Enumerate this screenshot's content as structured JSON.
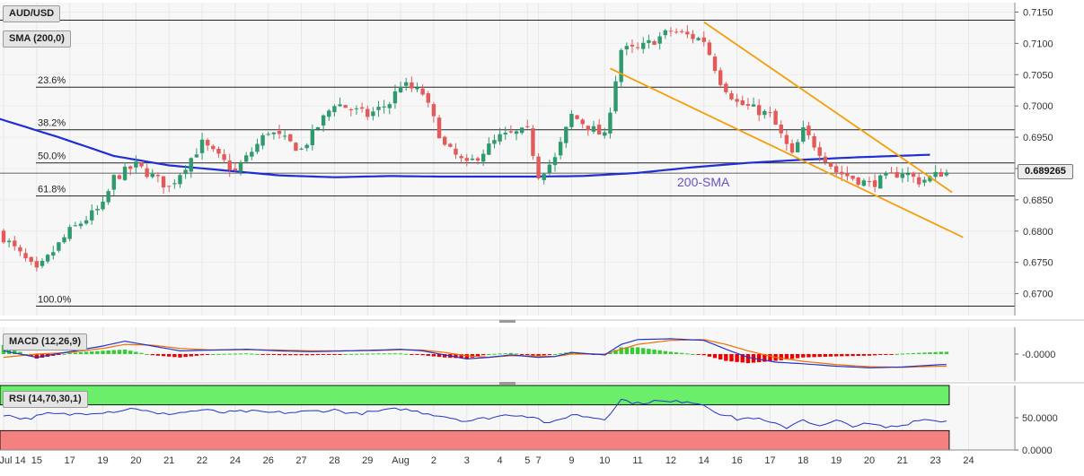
{
  "symbol": "AUD/USD",
  "indicators": {
    "sma_label": "SMA (200,0)",
    "macd_label": "MACD (12,26,9)",
    "rsi_label": "RSI (14,70,30,1)",
    "sma_annotation": "200-SMA"
  },
  "last_price_label": "0.689265",
  "colors": {
    "bull": "#2e9a6e",
    "bear": "#e25a5a",
    "sma": "#1f2fd1",
    "channel": "#f59e0b",
    "macd_line": "#2233cc",
    "signal_line": "#f07000",
    "hist_pos": "#33cc33",
    "hist_neg": "#ee0000",
    "rsi_line": "#2233cc",
    "rsi_overbought_zone": "#6bef6b",
    "rsi_oversold_zone": "#f48080",
    "label_box": "#e4e4e4",
    "price_tag": "#ececec"
  },
  "chart_data": [
    {
      "type": "candlestick",
      "panel": "price",
      "title": "AUD/USD",
      "ylim": [
        0.6665,
        0.7165
      ],
      "y_ticks": [
        0.715,
        0.71,
        0.705,
        0.7,
        0.695,
        0.69,
        0.685,
        0.68,
        0.675,
        0.67
      ],
      "y_tick_labels": [
        "0.7150",
        "0.7100",
        "0.7050",
        "0.7000",
        "0.6950",
        "0.6900",
        "0.6850",
        "0.6800",
        "0.6750",
        "0.6700"
      ],
      "x_ticks": [
        {
          "label": "Jul 14",
          "i": 0
        },
        {
          "label": "15",
          "i": 6
        },
        {
          "label": "17",
          "i": 12
        },
        {
          "label": "19",
          "i": 18
        },
        {
          "label": "20",
          "i": 24
        },
        {
          "label": "21",
          "i": 30
        },
        {
          "label": "22",
          "i": 36
        },
        {
          "label": "24",
          "i": 42
        },
        {
          "label": "26",
          "i": 48
        },
        {
          "label": "27",
          "i": 54
        },
        {
          "label": "28",
          "i": 60
        },
        {
          "label": "29",
          "i": 66
        },
        {
          "label": "Aug",
          "i": 72
        },
        {
          "label": "2",
          "i": 78
        },
        {
          "label": "3",
          "i": 84
        },
        {
          "label": "4",
          "i": 90
        },
        {
          "label": "5",
          "i": 95
        },
        {
          "label": "7",
          "i": 97
        },
        {
          "label": "9",
          "i": 103
        },
        {
          "label": "10",
          "i": 109
        },
        {
          "label": "11",
          "i": 115
        },
        {
          "label": "12",
          "i": 121
        },
        {
          "label": "14",
          "i": 127
        },
        {
          "label": "16",
          "i": 133
        },
        {
          "label": "17",
          "i": 139
        },
        {
          "label": "18",
          "i": 145
        },
        {
          "label": "19",
          "i": 151
        },
        {
          "label": "20",
          "i": 157
        },
        {
          "label": "21",
          "i": 163
        },
        {
          "label": "23",
          "i": 169
        },
        {
          "label": "24",
          "i": 175
        }
      ],
      "candle_count": 172,
      "close_anchors": [
        [
          0,
          0.679
        ],
        [
          6,
          0.6735
        ],
        [
          12,
          0.68
        ],
        [
          18,
          0.684
        ],
        [
          20,
          0.6885
        ],
        [
          24,
          0.6905
        ],
        [
          30,
          0.687
        ],
        [
          36,
          0.694
        ],
        [
          42,
          0.6895
        ],
        [
          48,
          0.696
        ],
        [
          54,
          0.693
        ],
        [
          60,
          0.7005
        ],
        [
          66,
          0.6985
        ],
        [
          70,
          0.7005
        ],
        [
          72,
          0.7035
        ],
        [
          76,
          0.702
        ],
        [
          80,
          0.6935
        ],
        [
          84,
          0.6905
        ],
        [
          90,
          0.695
        ],
        [
          95,
          0.696
        ],
        [
          97,
          0.689
        ],
        [
          100,
          0.6915
        ],
        [
          103,
          0.6985
        ],
        [
          109,
          0.695
        ],
        [
          112,
          0.709
        ],
        [
          115,
          0.709
        ],
        [
          121,
          0.712
        ],
        [
          127,
          0.7105
        ],
        [
          130,
          0.704
        ],
        [
          133,
          0.7005
        ],
        [
          139,
          0.6985
        ],
        [
          143,
          0.692
        ],
        [
          145,
          0.696
        ],
        [
          151,
          0.6895
        ],
        [
          157,
          0.6875
        ],
        [
          163,
          0.6895
        ],
        [
          166,
          0.688
        ],
        [
          168,
          0.6885
        ],
        [
          170,
          0.6893
        ]
      ],
      "sma_200": [
        [
          -1,
          0.698
        ],
        [
          10,
          0.695
        ],
        [
          20,
          0.692
        ],
        [
          30,
          0.6905
        ],
        [
          40,
          0.6897
        ],
        [
          50,
          0.6889
        ],
        [
          60,
          0.6886
        ],
        [
          70,
          0.6888
        ],
        [
          80,
          0.6887
        ],
        [
          95,
          0.6887
        ],
        [
          105,
          0.6888
        ],
        [
          115,
          0.6893
        ],
        [
          125,
          0.6902
        ],
        [
          135,
          0.6909
        ],
        [
          145,
          0.6914
        ],
        [
          155,
          0.6918
        ],
        [
          168,
          0.6922
        ]
      ],
      "fibonacci": [
        {
          "label": "23.6%",
          "price": 0.703
        },
        {
          "label": "38.2%",
          "price": 0.6962
        },
        {
          "label": "50.0%",
          "price": 0.6909
        },
        {
          "label": "61.8%",
          "price": 0.6856
        },
        {
          "label": "100.0%",
          "price": 0.668
        }
      ],
      "horizontal_lines": [
        0.7137
      ],
      "falling_channel": {
        "upper": [
          [
            127,
            0.7134
          ],
          [
            172,
            0.6862
          ]
        ],
        "lower": [
          [
            110,
            0.706
          ],
          [
            174,
            0.679
          ]
        ]
      },
      "last_price": 0.689265
    },
    {
      "type": "macd",
      "panel": "macd",
      "title": "MACD (12,26,9)",
      "y_ticks": [
        0
      ],
      "y_tick_labels": [
        "-0.0000"
      ],
      "macd_anchors": [
        [
          0,
          0.2
        ],
        [
          6,
          -0.2
        ],
        [
          12,
          0.15
        ],
        [
          18,
          0.5
        ],
        [
          22,
          0.8
        ],
        [
          27,
          0.5
        ],
        [
          32,
          0.2
        ],
        [
          38,
          0.25
        ],
        [
          44,
          0.3
        ],
        [
          50,
          0.2
        ],
        [
          56,
          0.15
        ],
        [
          62,
          0.2
        ],
        [
          68,
          0.25
        ],
        [
          72,
          0.3
        ],
        [
          76,
          0.2
        ],
        [
          80,
          -0.05
        ],
        [
          84,
          -0.3
        ],
        [
          88,
          -0.2
        ],
        [
          92,
          -0.05
        ],
        [
          97,
          -0.2
        ],
        [
          100,
          -0.15
        ],
        [
          103,
          0.1
        ],
        [
          109,
          -0.05
        ],
        [
          112,
          0.6
        ],
        [
          115,
          0.9
        ],
        [
          121,
          0.95
        ],
        [
          127,
          0.85
        ],
        [
          131,
          0.3
        ],
        [
          135,
          -0.2
        ],
        [
          140,
          -0.5
        ],
        [
          145,
          -0.6
        ],
        [
          151,
          -0.75
        ],
        [
          157,
          -0.85
        ],
        [
          163,
          -0.8
        ],
        [
          170,
          -0.65
        ]
      ],
      "signal_anchors": [
        [
          0,
          -0.2
        ],
        [
          6,
          0.0
        ],
        [
          12,
          0.1
        ],
        [
          18,
          0.35
        ],
        [
          22,
          0.6
        ],
        [
          27,
          0.55
        ],
        [
          32,
          0.35
        ],
        [
          38,
          0.25
        ],
        [
          44,
          0.27
        ],
        [
          50,
          0.25
        ],
        [
          56,
          0.2
        ],
        [
          62,
          0.2
        ],
        [
          68,
          0.22
        ],
        [
          72,
          0.27
        ],
        [
          76,
          0.25
        ],
        [
          80,
          0.1
        ],
        [
          84,
          -0.1
        ],
        [
          88,
          -0.2
        ],
        [
          92,
          -0.1
        ],
        [
          97,
          -0.12
        ],
        [
          100,
          -0.15
        ],
        [
          103,
          0.0
        ],
        [
          109,
          0.0
        ],
        [
          112,
          0.3
        ],
        [
          115,
          0.6
        ],
        [
          121,
          0.85
        ],
        [
          127,
          0.9
        ],
        [
          131,
          0.6
        ],
        [
          135,
          0.2
        ],
        [
          140,
          -0.2
        ],
        [
          145,
          -0.45
        ],
        [
          151,
          -0.65
        ],
        [
          157,
          -0.78
        ],
        [
          163,
          -0.82
        ],
        [
          170,
          -0.75
        ]
      ]
    },
    {
      "type": "rsi",
      "panel": "rsi",
      "title": "RSI (14,70,30,1)",
      "ylim": [
        0,
        100
      ],
      "y_ticks": [
        50,
        0
      ],
      "y_tick_labels": [
        "50.0000",
        "0.0000"
      ],
      "zones": {
        "overbought": [
          70,
          100
        ],
        "oversold": [
          0,
          30
        ]
      },
      "rsi_anchors": [
        [
          0,
          55
        ],
        [
          4,
          48
        ],
        [
          8,
          56
        ],
        [
          12,
          55
        ],
        [
          16,
          58
        ],
        [
          20,
          60
        ],
        [
          24,
          65
        ],
        [
          28,
          55
        ],
        [
          32,
          58
        ],
        [
          36,
          62
        ],
        [
          40,
          58
        ],
        [
          44,
          60
        ],
        [
          48,
          58
        ],
        [
          52,
          58
        ],
        [
          56,
          60
        ],
        [
          60,
          62
        ],
        [
          64,
          56
        ],
        [
          68,
          60
        ],
        [
          72,
          64
        ],
        [
          76,
          58
        ],
        [
          80,
          52
        ],
        [
          84,
          45
        ],
        [
          88,
          50
        ],
        [
          92,
          55
        ],
        [
          96,
          52
        ],
        [
          99,
          40
        ],
        [
          103,
          55
        ],
        [
          109,
          48
        ],
        [
          112,
          78
        ],
        [
          115,
          72
        ],
        [
          118,
          76
        ],
        [
          121,
          74
        ],
        [
          124,
          76
        ],
        [
          127,
          70
        ],
        [
          130,
          56
        ],
        [
          133,
          48
        ],
        [
          136,
          50
        ],
        [
          139,
          42
        ],
        [
          142,
          35
        ],
        [
          145,
          48
        ],
        [
          148,
          36
        ],
        [
          151,
          45
        ],
        [
          154,
          38
        ],
        [
          157,
          40
        ],
        [
          160,
          35
        ],
        [
          163,
          38
        ],
        [
          166,
          48
        ],
        [
          170,
          45
        ]
      ]
    }
  ]
}
